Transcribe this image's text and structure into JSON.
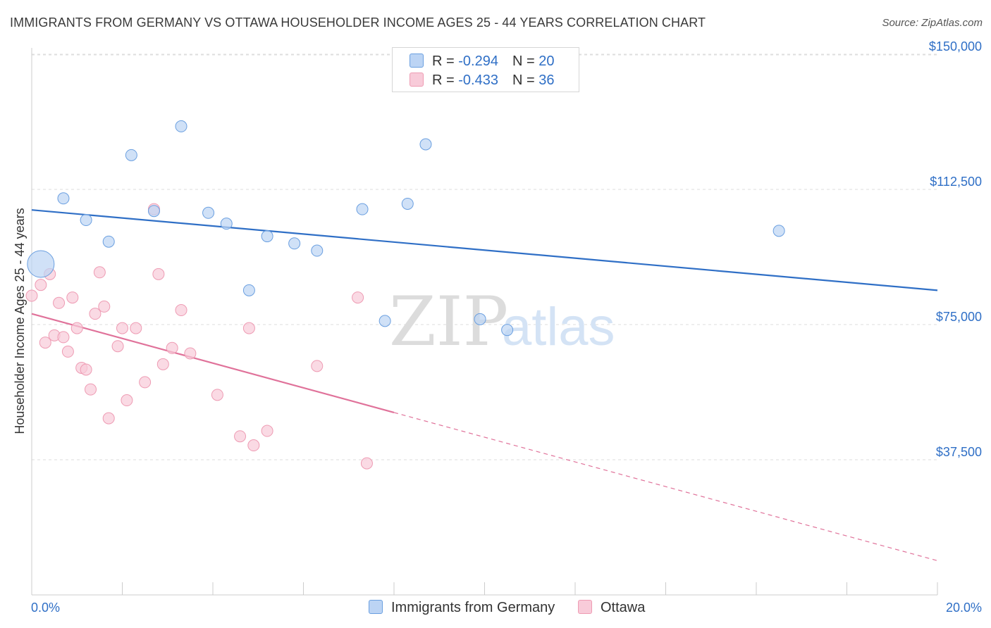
{
  "header": {
    "title": "IMMIGRANTS FROM GERMANY VS OTTAWA HOUSEHOLDER INCOME AGES 25 - 44 YEARS CORRELATION CHART",
    "source": "Source: ZipAtlas.com"
  },
  "watermark": {
    "zip": "ZIP",
    "atlas": "atlas"
  },
  "legend_top": {
    "rows": [
      {
        "r_label": "R = ",
        "r_value": "-0.294",
        "n_label": "N = ",
        "n_value": "20"
      },
      {
        "r_label": "R = ",
        "r_value": "-0.433",
        "n_label": "N = ",
        "n_value": "36"
      }
    ]
  },
  "chart_data": {
    "type": "scatter",
    "title": "IMMIGRANTS FROM GERMANY VS OTTAWA HOUSEHOLDER INCOME AGES 25 - 44 YEARS CORRELATION CHART",
    "xlabel": "",
    "ylabel": "Householder Income Ages 25 - 44 years",
    "x_tick_labels": [
      "0.0%",
      "20.0%"
    ],
    "y_tick_labels": [
      "$150,000",
      "$112,500",
      "$75,000",
      "$37,500"
    ],
    "y_ticks": [
      150000,
      112500,
      75000,
      37500
    ],
    "xlim": [
      0,
      20
    ],
    "ylim": [
      0,
      155000
    ],
    "grid": true,
    "legend_placement": "bottom",
    "series": [
      {
        "name": "Immigrants from Germany",
        "color": "#6a9fe0",
        "fill": "#bcd4f4",
        "line_color": "#2f6fc6",
        "points": [
          [
            0.2,
            91800,
            "large"
          ],
          [
            0.7,
            110000
          ],
          [
            1.2,
            104000
          ],
          [
            1.7,
            98000
          ],
          [
            2.2,
            122000
          ],
          [
            2.7,
            106500
          ],
          [
            3.3,
            130000
          ],
          [
            3.9,
            106000
          ],
          [
            4.3,
            103000
          ],
          [
            4.8,
            84500
          ],
          [
            5.2,
            99500
          ],
          [
            5.8,
            97500
          ],
          [
            6.3,
            95500
          ],
          [
            7.3,
            107000
          ],
          [
            7.8,
            76000
          ],
          [
            8.3,
            108500
          ],
          [
            8.7,
            125000
          ],
          [
            9.9,
            76500
          ],
          [
            10.5,
            73500
          ],
          [
            16.5,
            101000
          ]
        ],
        "trend": {
          "x": [
            0,
            20
          ],
          "y": [
            106800,
            84500
          ],
          "style": "solid"
        }
      },
      {
        "name": "Ottawa",
        "color": "#ee9bb3",
        "fill": "#f8cbd9",
        "line_color": "#e0729a",
        "points": [
          [
            0.0,
            83000
          ],
          [
            0.2,
            86000
          ],
          [
            0.3,
            70000
          ],
          [
            0.4,
            89000
          ],
          [
            0.5,
            72000
          ],
          [
            0.6,
            81000
          ],
          [
            0.7,
            71500
          ],
          [
            0.8,
            67500
          ],
          [
            0.9,
            82500
          ],
          [
            1.0,
            74000
          ],
          [
            1.1,
            63000
          ],
          [
            1.2,
            62500
          ],
          [
            1.3,
            57000
          ],
          [
            1.4,
            78000
          ],
          [
            1.5,
            89500
          ],
          [
            1.6,
            80000
          ],
          [
            1.7,
            49000
          ],
          [
            1.9,
            69000
          ],
          [
            2.0,
            74000
          ],
          [
            2.1,
            54000
          ],
          [
            2.3,
            74000
          ],
          [
            2.5,
            59000
          ],
          [
            2.7,
            107000
          ],
          [
            2.8,
            89000
          ],
          [
            2.9,
            64000
          ],
          [
            3.1,
            68500
          ],
          [
            3.3,
            79000
          ],
          [
            3.5,
            67000
          ],
          [
            4.1,
            55500
          ],
          [
            4.6,
            44000
          ],
          [
            4.8,
            74000
          ],
          [
            4.9,
            41500
          ],
          [
            5.2,
            45500
          ],
          [
            6.3,
            63500
          ],
          [
            7.2,
            82500
          ],
          [
            7.4,
            36500
          ]
        ],
        "trend": {
          "x": [
            0,
            20
          ],
          "y": [
            78000,
            9500
          ],
          "solid_until_x": 8.0
        }
      }
    ]
  }
}
